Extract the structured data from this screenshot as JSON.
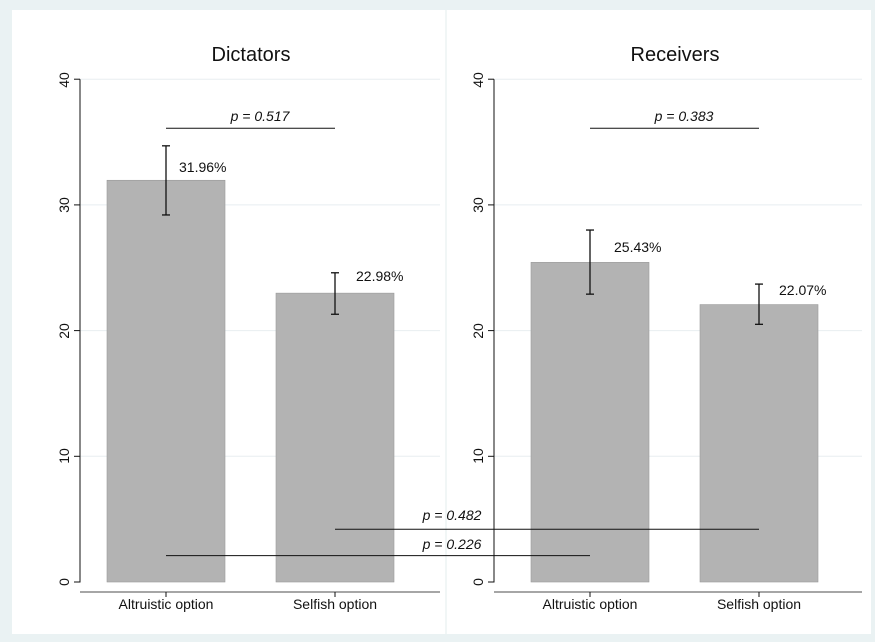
{
  "colors": {
    "outer_background": "#eaf2f3",
    "panel_background": "#ffffff",
    "bar_fill": "#b3b3b3",
    "bar_stroke": "#999999",
    "grid": "#e8eef0",
    "ink": "#111111"
  },
  "chart_data": {
    "type": "bar",
    "categories": [
      "Altruistic option",
      "Selfish option"
    ],
    "ylim": [
      0,
      40
    ],
    "yticks": [
      "0",
      "10",
      "20",
      "30",
      "40"
    ],
    "grid": true,
    "panels": [
      {
        "title": "Dictators",
        "values": [
          31.96,
          22.98
        ],
        "value_labels": [
          "31.96%",
          "22.98%"
        ],
        "error_bars": [
          [
            29.2,
            34.7
          ],
          [
            21.3,
            24.6
          ]
        ],
        "comparison": {
          "label": "p = 0.517",
          "y": 36.1
        }
      },
      {
        "title": "Receivers",
        "values": [
          25.43,
          22.07
        ],
        "value_labels": [
          "25.43%",
          "22.07%"
        ],
        "error_bars": [
          [
            22.9,
            28.0
          ],
          [
            20.5,
            23.7
          ]
        ],
        "comparison": {
          "label": "p = 0.383",
          "y": 36.1
        }
      }
    ],
    "cross_comparisons": [
      {
        "label": "p = 0.482",
        "y": 4.2,
        "from": "Dictators / Selfish option",
        "to": "Receivers / Selfish option"
      },
      {
        "label": "p = 0.226",
        "y": 2.1,
        "from": "Dictators / Altruistic option",
        "to": "Receivers / Altruistic option"
      }
    ]
  }
}
